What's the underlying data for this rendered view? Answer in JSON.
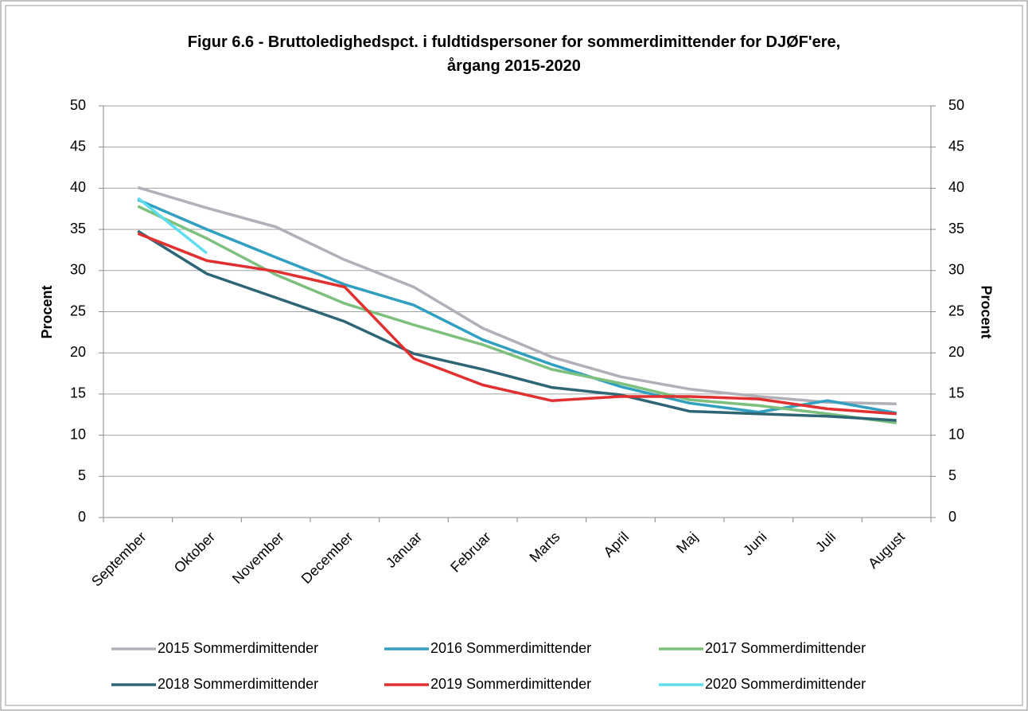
{
  "chart_data": {
    "type": "line",
    "title": "Figur 6.6 - Bruttoledighedspct. i fuldtidspersoner for sommerdimittender for DJØF'ere, årgang 2015-2020",
    "ylabel": "Procent",
    "y2label": "Procent",
    "categories": [
      "September",
      "Oktober",
      "November",
      "December",
      "Januar",
      "Februar",
      "Marts",
      "April",
      "Maj",
      "Juni",
      "Juli",
      "August"
    ],
    "series": [
      {
        "name": "2015 Sommerdimittender",
        "color": "#b0b0b8",
        "values": [
          40.1,
          37.6,
          35.3,
          31.3,
          28.0,
          23.0,
          19.5,
          17.1,
          15.6,
          14.7,
          14.0,
          13.8
        ]
      },
      {
        "name": "2016 Sommerdimittender",
        "color": "#31a0c0",
        "values": [
          38.6,
          35.0,
          31.6,
          28.3,
          25.8,
          21.6,
          18.6,
          15.9,
          13.9,
          12.8,
          14.2,
          12.7
        ]
      },
      {
        "name": "2017 Sommerdimittender",
        "color": "#7dbf7d",
        "values": [
          37.8,
          33.9,
          29.5,
          26.0,
          23.4,
          21.0,
          18.0,
          16.3,
          14.3,
          13.6,
          12.6,
          11.5
        ]
      },
      {
        "name": "2018 Sommerdimittender",
        "color": "#2f6676",
        "values": [
          34.8,
          29.6,
          26.7,
          23.8,
          19.9,
          18.0,
          15.8,
          14.9,
          12.9,
          12.6,
          12.3,
          11.8
        ]
      },
      {
        "name": "2019 Sommerdimittender",
        "color": "#e03030",
        "values": [
          34.5,
          31.2,
          29.9,
          28.0,
          19.3,
          16.1,
          14.2,
          14.7,
          14.7,
          14.4,
          13.2,
          12.6
        ]
      },
      {
        "name": "2020 Sommerdimittender",
        "color": "#60ddef",
        "values": [
          38.8,
          32.1,
          null,
          null,
          null,
          null,
          null,
          null,
          null,
          null,
          null,
          null
        ]
      }
    ],
    "ylim": [
      0,
      50
    ],
    "yticks": [
      0,
      5,
      10,
      15,
      20,
      25,
      30,
      35,
      40,
      45,
      50
    ],
    "y2lim": [
      0,
      50
    ],
    "y2ticks": [
      0,
      5,
      10,
      15,
      20,
      25,
      30,
      35,
      40,
      45,
      50
    ],
    "grid": true
  }
}
